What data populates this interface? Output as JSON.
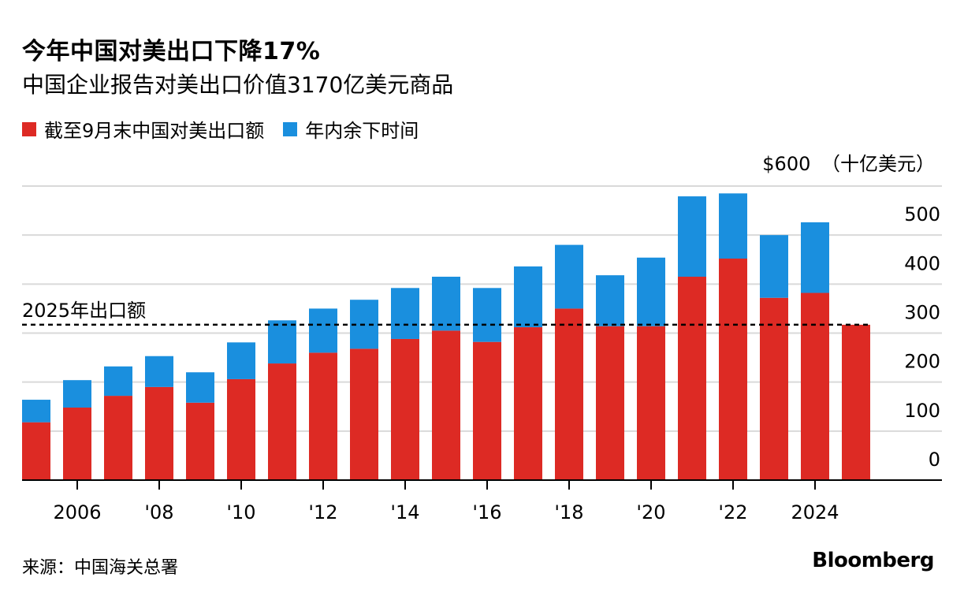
{
  "header": {
    "title": "今年中国对美出口下降17%",
    "subtitle": "中国企业报告对美出口价值3170亿美元商品"
  },
  "colors": {
    "ytd": "#dd2a24",
    "rest": "#1a8fde"
  },
  "chart_data": {
    "type": "bar",
    "stacked": true,
    "legend": {
      "ytd": "截至9月末中国对美出口额",
      "rest": "年内余下时间"
    },
    "y_top_label": "$600",
    "y_unit": "（十亿美元）",
    "ylim": [
      0,
      600
    ],
    "y_ticks": [
      0,
      100,
      200,
      300,
      400,
      500
    ],
    "grid": true,
    "years": [
      2005,
      2006,
      2007,
      2008,
      2009,
      2010,
      2011,
      2012,
      2013,
      2014,
      2015,
      2016,
      2017,
      2018,
      2019,
      2020,
      2021,
      2022,
      2023,
      2024,
      2025
    ],
    "x_ticks": [
      {
        "year": 2006,
        "label": "2006"
      },
      {
        "year": 2008,
        "label": "'08"
      },
      {
        "year": 2010,
        "label": "'10"
      },
      {
        "year": 2012,
        "label": "'12"
      },
      {
        "year": 2014,
        "label": "'14"
      },
      {
        "year": 2016,
        "label": "'16"
      },
      {
        "year": 2018,
        "label": "'18"
      },
      {
        "year": 2020,
        "label": "'20"
      },
      {
        "year": 2022,
        "label": "'22"
      },
      {
        "year": 2024,
        "label": "2024"
      }
    ],
    "series": [
      {
        "name": "截至9月末中国对美出口额",
        "key": "ytd",
        "values": [
          118,
          148,
          172,
          190,
          158,
          206,
          238,
          260,
          268,
          288,
          305,
          282,
          312,
          350,
          314,
          314,
          415,
          452,
          372,
          382,
          317
        ]
      },
      {
        "name": "年内余下时间",
        "key": "rest",
        "values": [
          46,
          56,
          60,
          63,
          62,
          75,
          88,
          90,
          100,
          104,
          110,
          110,
          124,
          130,
          104,
          140,
          164,
          133,
          128,
          144,
          0
        ]
      }
    ],
    "reference_line": {
      "value": 317,
      "label": "2025年出口额"
    }
  },
  "footer": {
    "source": "来源：中国海关总署",
    "brand": "Bloomberg"
  }
}
